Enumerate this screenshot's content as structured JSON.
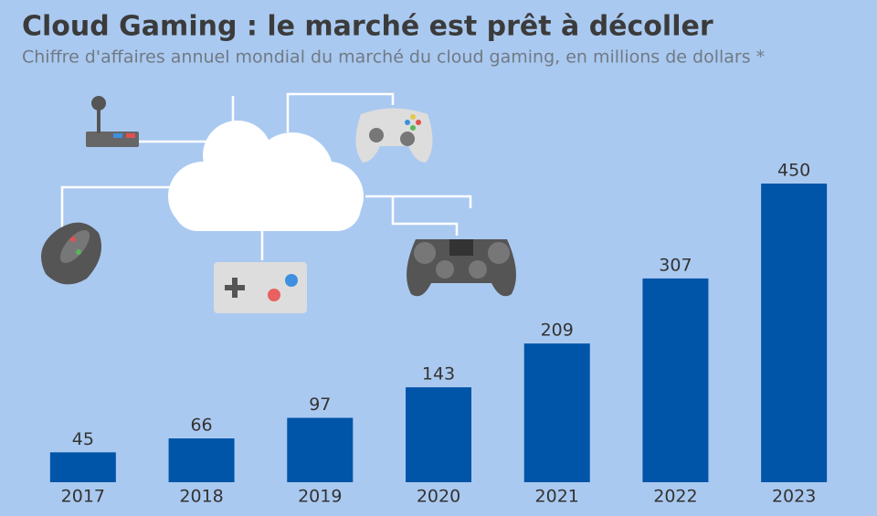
{
  "chart_data": {
    "type": "bar",
    "title": "Cloud Gaming : le marché est prêt à décoller",
    "subtitle": "Chiffre d'affaires annuel mondial du marché du cloud gaming, en millions de dollars *",
    "categories": [
      "2017",
      "2018",
      "2019",
      "2020",
      "2021",
      "2022",
      "2023"
    ],
    "values": [
      45,
      66,
      97,
      143,
      209,
      307,
      450
    ],
    "color": "#0055a8"
  }
}
